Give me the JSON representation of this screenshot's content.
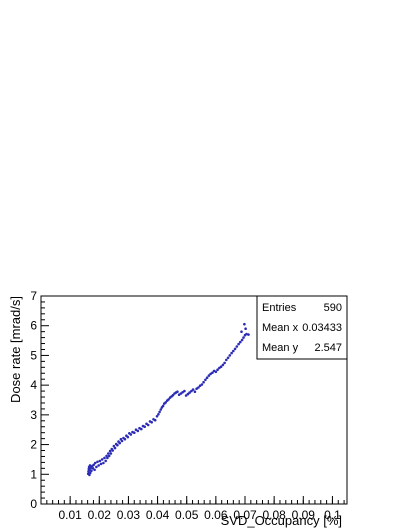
{
  "chart_data": {
    "type": "scatter",
    "title": "",
    "xlabel": "SVD_Occupancy [%]",
    "ylabel": "Dose rate [mrad/s]",
    "xlim": [
      0.0,
      0.105
    ],
    "ylim": [
      0,
      7
    ],
    "x_ticks": [
      {
        "value": 0.01,
        "label": "0.01"
      },
      {
        "value": 0.02,
        "label": "0.02"
      },
      {
        "value": 0.03,
        "label": "0.03"
      },
      {
        "value": 0.04,
        "label": "0.04"
      },
      {
        "value": 0.05,
        "label": "0.05"
      },
      {
        "value": 0.06,
        "label": "0.06"
      },
      {
        "value": 0.07,
        "label": "0.07"
      },
      {
        "value": 0.08,
        "label": "0.08"
      },
      {
        "value": 0.09,
        "label": "0.09"
      },
      {
        "value": 0.1,
        "label": "0.1"
      }
    ],
    "y_ticks": [
      {
        "value": 0,
        "label": "0"
      },
      {
        "value": 1,
        "label": "1"
      },
      {
        "value": 2,
        "label": "2"
      },
      {
        "value": 3,
        "label": "3"
      },
      {
        "value": 4,
        "label": "4"
      },
      {
        "value": 5,
        "label": "5"
      },
      {
        "value": 6,
        "label": "6"
      },
      {
        "value": 7,
        "label": "7"
      }
    ],
    "grid": false,
    "marker_color": "#2b2bb5",
    "points": [
      [
        0.0162,
        1.02
      ],
      [
        0.0163,
        1.1
      ],
      [
        0.0164,
        1.18
      ],
      [
        0.0165,
        1.25
      ],
      [
        0.0166,
        0.98
      ],
      [
        0.0167,
        1.15
      ],
      [
        0.0168,
        1.3
      ],
      [
        0.0169,
        1.05
      ],
      [
        0.0171,
        1.22
      ],
      [
        0.0173,
        1.12
      ],
      [
        0.0176,
        1.28
      ],
      [
        0.0178,
        1.2
      ],
      [
        0.0181,
        1.32
      ],
      [
        0.0184,
        1.15
      ],
      [
        0.0186,
        1.38
      ],
      [
        0.019,
        1.25
      ],
      [
        0.0194,
        1.42
      ],
      [
        0.0198,
        1.3
      ],
      [
        0.0202,
        1.45
      ],
      [
        0.0206,
        1.35
      ],
      [
        0.021,
        1.5
      ],
      [
        0.0214,
        1.38
      ],
      [
        0.0218,
        1.55
      ],
      [
        0.0222,
        1.45
      ],
      [
        0.0225,
        1.62
      ],
      [
        0.0228,
        1.55
      ],
      [
        0.0231,
        1.7
      ],
      [
        0.0234,
        1.62
      ],
      [
        0.0237,
        1.78
      ],
      [
        0.024,
        1.7
      ],
      [
        0.0243,
        1.85
      ],
      [
        0.0246,
        1.8
      ],
      [
        0.025,
        1.95
      ],
      [
        0.0254,
        1.88
      ],
      [
        0.0258,
        2.02
      ],
      [
        0.0262,
        1.98
      ],
      [
        0.0266,
        2.1
      ],
      [
        0.027,
        2.05
      ],
      [
        0.0274,
        2.18
      ],
      [
        0.0278,
        2.12
      ],
      [
        0.0283,
        2.22
      ],
      [
        0.0288,
        2.18
      ],
      [
        0.0293,
        2.3
      ],
      [
        0.0298,
        2.25
      ],
      [
        0.0303,
        2.38
      ],
      [
        0.0308,
        2.34
      ],
      [
        0.0314,
        2.42
      ],
      [
        0.032,
        2.4
      ],
      [
        0.0326,
        2.5
      ],
      [
        0.0332,
        2.46
      ],
      [
        0.0338,
        2.55
      ],
      [
        0.0344,
        2.52
      ],
      [
        0.035,
        2.62
      ],
      [
        0.0356,
        2.6
      ],
      [
        0.0362,
        2.7
      ],
      [
        0.0368,
        2.66
      ],
      [
        0.0374,
        2.78
      ],
      [
        0.038,
        2.75
      ],
      [
        0.0386,
        2.85
      ],
      [
        0.0392,
        2.82
      ],
      [
        0.0398,
        2.95
      ],
      [
        0.0403,
        3.02
      ],
      [
        0.0407,
        3.1
      ],
      [
        0.0411,
        3.18
      ],
      [
        0.0415,
        3.25
      ],
      [
        0.0419,
        3.3
      ],
      [
        0.0423,
        3.38
      ],
      [
        0.0428,
        3.42
      ],
      [
        0.0433,
        3.48
      ],
      [
        0.0438,
        3.52
      ],
      [
        0.0443,
        3.58
      ],
      [
        0.0448,
        3.62
      ],
      [
        0.0453,
        3.66
      ],
      [
        0.0458,
        3.72
      ],
      [
        0.0463,
        3.75
      ],
      [
        0.0468,
        3.78
      ],
      [
        0.0474,
        3.68
      ],
      [
        0.048,
        3.72
      ],
      [
        0.0486,
        3.76
      ],
      [
        0.0492,
        3.8
      ],
      [
        0.0498,
        3.65
      ],
      [
        0.0504,
        3.7
      ],
      [
        0.051,
        3.75
      ],
      [
        0.0516,
        3.8
      ],
      [
        0.0522,
        3.85
      ],
      [
        0.0528,
        3.78
      ],
      [
        0.0534,
        3.88
      ],
      [
        0.054,
        3.92
      ],
      [
        0.0546,
        3.98
      ],
      [
        0.0552,
        4.02
      ],
      [
        0.0558,
        4.1
      ],
      [
        0.0564,
        4.18
      ],
      [
        0.057,
        4.25
      ],
      [
        0.0576,
        4.32
      ],
      [
        0.0582,
        4.38
      ],
      [
        0.0588,
        4.42
      ],
      [
        0.0594,
        4.48
      ],
      [
        0.06,
        4.45
      ],
      [
        0.0606,
        4.52
      ],
      [
        0.0612,
        4.58
      ],
      [
        0.0618,
        4.62
      ],
      [
        0.0624,
        4.68
      ],
      [
        0.063,
        4.75
      ],
      [
        0.0636,
        4.85
      ],
      [
        0.0642,
        4.92
      ],
      [
        0.0648,
        5.0
      ],
      [
        0.0654,
        5.08
      ],
      [
        0.066,
        5.15
      ],
      [
        0.0666,
        5.22
      ],
      [
        0.0672,
        5.3
      ],
      [
        0.0678,
        5.38
      ],
      [
        0.0684,
        5.45
      ],
      [
        0.069,
        5.52
      ],
      [
        0.0695,
        5.6
      ],
      [
        0.07,
        5.68
      ],
      [
        0.0705,
        5.72
      ],
      [
        0.0712,
        5.7
      ],
      [
        0.0698,
        6.05
      ],
      [
        0.0702,
        5.9
      ],
      [
        0.0688,
        5.8
      ]
    ]
  },
  "stats": {
    "entries_label": "Entries",
    "entries_value": "590",
    "mean_x_label": "Mean x",
    "mean_x_value": "0.03433",
    "mean_y_label": "Mean y",
    "mean_y_value": "2.547"
  }
}
